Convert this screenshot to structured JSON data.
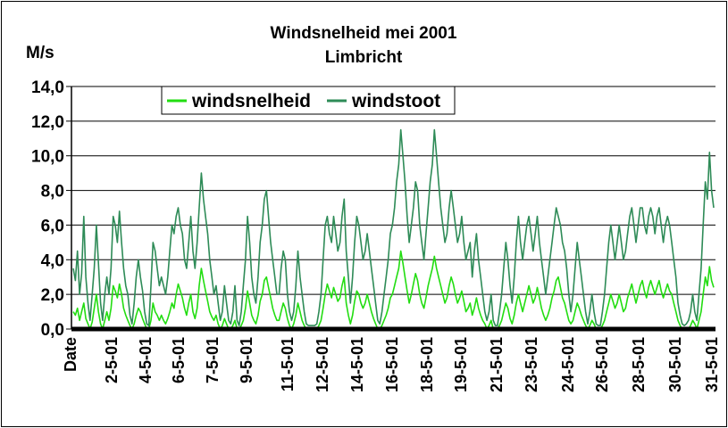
{
  "chart_data": {
    "type": "line",
    "title_lines": [
      "Windsnelheid mei 2001",
      "Limbricht"
    ],
    "ylabel": "M/s",
    "ylim": [
      0,
      14
    ],
    "yticks": [
      "0,0",
      "2,0",
      "4,0",
      "6,0",
      "8,0",
      "10,0",
      "12,0",
      "14,0"
    ],
    "xtick_labels": [
      "Date",
      "2-5-01",
      "4-5-01",
      "6-5-01",
      "7-5-01",
      "9-5-01",
      "11-5-01",
      "12-5-01",
      "14-5-01",
      "16-5-01",
      "18-5-01",
      "19-5-01",
      "21-5-01",
      "23-5-01",
      "24-5-01",
      "26-5-01",
      "28-5-01",
      "30-5-01",
      "31-5-01"
    ],
    "grid": true,
    "legend_position": "top",
    "series": [
      {
        "name": "windsnelheid",
        "color": "#22dd11",
        "values": [
          1.0,
          0.8,
          1.2,
          0.5,
          1.0,
          1.5,
          0.6,
          0.3,
          0.0,
          0.4,
          1.2,
          2.0,
          1.0,
          0.3,
          0.0,
          0.5,
          1.0,
          0.5,
          1.2,
          2.5,
          2.2,
          1.8,
          2.6,
          2.0,
          1.2,
          0.8,
          0.5,
          0.2,
          0.0,
          0.3,
          0.8,
          1.2,
          1.0,
          0.6,
          0.3,
          0.0,
          0.0,
          0.5,
          1.5,
          1.0,
          0.8,
          0.5,
          0.8,
          0.5,
          0.3,
          0.6,
          1.0,
          1.5,
          1.2,
          2.0,
          2.6,
          2.2,
          1.8,
          1.2,
          0.8,
          1.5,
          2.0,
          1.0,
          0.6,
          1.2,
          2.5,
          3.5,
          2.8,
          2.2,
          1.6,
          1.0,
          0.7,
          0.5,
          0.8,
          0.3,
          0.0,
          0.2,
          0.6,
          0.3,
          0.0,
          0.0,
          0.2,
          0.5,
          0.0,
          0.0,
          0.2,
          0.5,
          1.2,
          2.2,
          1.5,
          0.8,
          0.5,
          0.3,
          0.8,
          1.6,
          2.0,
          2.8,
          3.0,
          2.4,
          1.8,
          1.2,
          0.8,
          0.5,
          0.5,
          1.0,
          1.5,
          1.2,
          0.6,
          0.2,
          0.0,
          0.3,
          0.8,
          1.5,
          1.0,
          0.5,
          0.2,
          0.0,
          0.0,
          0.0,
          0.0,
          0.0,
          0.0,
          0.2,
          0.5,
          1.2,
          2.0,
          2.6,
          2.2,
          1.8,
          2.4,
          2.0,
          1.6,
          1.8,
          2.5,
          3.0,
          1.5,
          0.8,
          0.3,
          0.8,
          1.6,
          2.2,
          2.0,
          1.5,
          1.2,
          1.5,
          2.0,
          1.5,
          1.0,
          0.6,
          0.3,
          0.0,
          0.0,
          0.2,
          0.5,
          0.8,
          1.2,
          1.8,
          2.0,
          2.5,
          3.0,
          3.5,
          4.5,
          3.8,
          3.0,
          2.2,
          1.5,
          2.0,
          2.6,
          3.2,
          2.8,
          2.0,
          1.5,
          1.2,
          1.8,
          2.5,
          3.0,
          3.5,
          4.2,
          3.5,
          3.0,
          2.5,
          2.0,
          1.5,
          1.8,
          2.5,
          3.0,
          2.6,
          2.0,
          1.5,
          1.8,
          2.2,
          1.6,
          1.0,
          1.2,
          1.5,
          0.8,
          1.2,
          1.8,
          1.2,
          0.8,
          0.5,
          0.3,
          0.0,
          0.2,
          0.5,
          0.0,
          0.0,
          0.0,
          0.2,
          0.5,
          1.0,
          1.5,
          1.2,
          0.6,
          0.3,
          0.8,
          1.5,
          2.0,
          1.5,
          1.0,
          1.5,
          2.0,
          2.5,
          2.0,
          1.5,
          1.8,
          2.4,
          1.8,
          1.2,
          0.8,
          0.5,
          0.8,
          1.2,
          1.8,
          2.2,
          2.8,
          3.0,
          2.4,
          1.8,
          1.5,
          1.0,
          0.5,
          0.3,
          0.5,
          1.0,
          1.5,
          1.2,
          0.8,
          0.5,
          0.2,
          0.0,
          0.2,
          0.5,
          0.3,
          0.0,
          0.0,
          0.0,
          0.2,
          0.5,
          1.0,
          1.5,
          2.0,
          1.6,
          1.2,
          1.5,
          2.0,
          1.5,
          1.0,
          1.2,
          1.8,
          2.2,
          2.6,
          2.0,
          1.5,
          2.0,
          2.5,
          2.8,
          2.2,
          1.8,
          2.4,
          2.8,
          2.4,
          2.0,
          2.4,
          2.8,
          2.2,
          1.8,
          2.2,
          2.6,
          2.2,
          2.0,
          1.5,
          1.0,
          0.5,
          0.2,
          0.0,
          0.0,
          0.0,
          0.0,
          0.2,
          0.5,
          0.3,
          0.0,
          0.5,
          1.0,
          2.0,
          3.0,
          2.5,
          3.6,
          2.8,
          2.4
        ]
      },
      {
        "name": "windstoot",
        "color": "#2e8b57",
        "values": [
          3.5,
          2.8,
          4.5,
          2.0,
          3.2,
          6.5,
          3.0,
          1.5,
          0.5,
          2.0,
          3.5,
          6.0,
          3.8,
          1.5,
          0.5,
          2.0,
          3.0,
          2.0,
          3.5,
          6.5,
          6.0,
          5.0,
          6.8,
          5.0,
          3.5,
          2.5,
          2.0,
          0.8,
          0.3,
          1.5,
          3.0,
          4.0,
          3.0,
          2.2,
          1.0,
          0.3,
          0.2,
          2.5,
          5.0,
          4.5,
          3.5,
          2.5,
          3.0,
          2.5,
          2.0,
          3.0,
          4.5,
          6.0,
          5.5,
          6.5,
          7.0,
          6.0,
          5.5,
          4.0,
          3.5,
          5.0,
          6.5,
          4.5,
          3.5,
          5.0,
          7.0,
          9.0,
          7.5,
          6.5,
          5.5,
          4.0,
          3.0,
          2.0,
          2.5,
          1.5,
          0.5,
          1.0,
          2.5,
          1.5,
          0.5,
          0.3,
          1.0,
          2.5,
          0.5,
          0.2,
          1.0,
          2.5,
          4.0,
          6.5,
          5.0,
          3.0,
          2.0,
          1.5,
          3.0,
          5.0,
          6.0,
          7.5,
          8.0,
          6.5,
          5.0,
          4.0,
          3.0,
          2.0,
          2.0,
          3.5,
          4.5,
          4.0,
          2.0,
          1.0,
          0.5,
          1.0,
          2.5,
          4.5,
          3.0,
          2.0,
          1.0,
          0.3,
          0.2,
          0.2,
          0.2,
          0.2,
          0.3,
          1.0,
          2.0,
          4.0,
          6.0,
          6.5,
          5.5,
          5.0,
          6.5,
          5.5,
          4.5,
          5.0,
          6.5,
          7.5,
          4.5,
          3.0,
          1.5,
          3.0,
          5.0,
          6.5,
          6.0,
          5.0,
          4.0,
          4.5,
          5.5,
          4.5,
          3.5,
          2.5,
          1.5,
          0.5,
          0.3,
          1.0,
          2.0,
          3.0,
          4.0,
          5.5,
          6.0,
          7.0,
          8.5,
          9.5,
          11.5,
          10.0,
          8.5,
          6.5,
          5.0,
          6.0,
          7.0,
          8.5,
          8.0,
          6.0,
          5.0,
          4.0,
          5.5,
          7.0,
          8.5,
          9.5,
          11.5,
          10.0,
          8.5,
          7.0,
          6.0,
          5.0,
          5.5,
          7.0,
          8.0,
          7.0,
          6.0,
          5.0,
          5.5,
          6.5,
          5.0,
          4.0,
          4.5,
          5.0,
          3.0,
          4.5,
          5.5,
          4.0,
          3.0,
          2.0,
          1.0,
          0.5,
          1.0,
          2.0,
          0.5,
          0.2,
          0.2,
          1.0,
          2.0,
          3.5,
          5.0,
          4.0,
          2.5,
          1.5,
          3.0,
          5.0,
          6.5,
          5.0,
          4.0,
          5.0,
          6.0,
          6.5,
          5.5,
          4.5,
          5.5,
          6.5,
          5.0,
          4.0,
          3.0,
          2.0,
          3.0,
          4.0,
          5.0,
          6.0,
          7.0,
          6.5,
          6.0,
          5.0,
          4.5,
          3.5,
          2.0,
          1.0,
          2.0,
          3.5,
          5.0,
          4.0,
          3.0,
          2.0,
          1.0,
          0.3,
          1.0,
          2.0,
          1.0,
          0.3,
          0.2,
          0.2,
          1.0,
          2.0,
          3.5,
          5.0,
          6.0,
          5.0,
          4.0,
          5.0,
          6.0,
          5.0,
          4.0,
          4.5,
          5.5,
          6.5,
          7.0,
          6.0,
          5.0,
          6.0,
          7.0,
          7.0,
          6.0,
          5.5,
          6.5,
          7.0,
          6.5,
          5.5,
          6.5,
          7.0,
          6.0,
          5.0,
          6.0,
          6.5,
          6.0,
          5.0,
          4.0,
          3.0,
          1.5,
          0.8,
          0.3,
          0.2,
          0.3,
          0.5,
          1.0,
          2.0,
          1.0,
          0.5,
          2.0,
          3.5,
          6.0,
          8.5,
          7.5,
          10.2,
          8.0,
          7.0
        ]
      }
    ]
  }
}
